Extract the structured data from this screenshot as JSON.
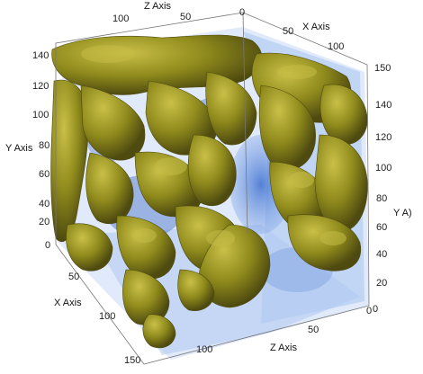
{
  "colors": {
    "background": "#ffffff",
    "isosurface": "#8f8a1c",
    "isosurface_dark": "#5a5612",
    "isosurface_light": "#b6ae3a",
    "volume": "#4f7fd6",
    "volume_light": "#b9cdf2",
    "axis_line": "#555555"
  },
  "axes": {
    "z_top": {
      "title": "Z Axis",
      "ticks": [
        "100",
        "50",
        "0"
      ]
    },
    "x_top": {
      "title": "X Axis",
      "ticks": [
        "50",
        "100",
        "150"
      ]
    },
    "y_left": {
      "title": "Y Axis",
      "ticks": [
        "140",
        "120",
        "100",
        "80",
        "60",
        "40",
        "20",
        "0"
      ]
    },
    "y_right": {
      "title": "Y A)",
      "ticks": [
        "140",
        "120",
        "100",
        "80",
        "60",
        "40",
        "20",
        "0"
      ]
    },
    "x_bottom": {
      "title": "X Axis",
      "ticks": [
        "50",
        "100",
        "150"
      ]
    },
    "z_bottom": {
      "title": "Z Axis",
      "ticks": [
        "100",
        "50",
        "0"
      ]
    }
  }
}
